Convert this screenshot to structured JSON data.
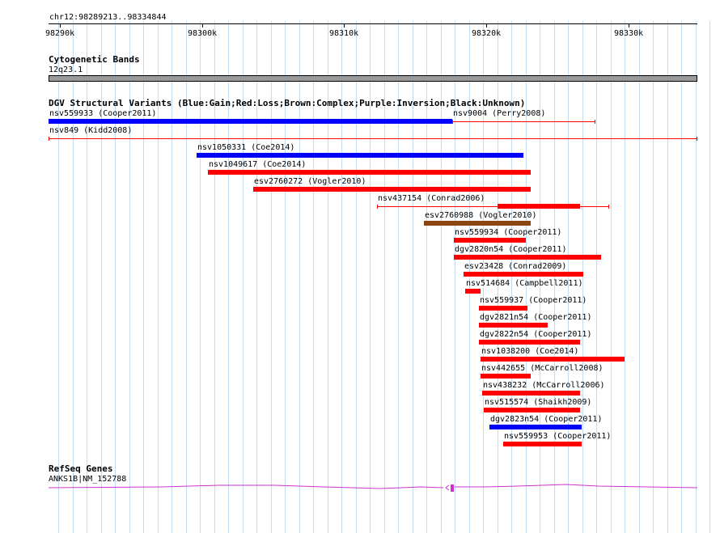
{
  "region": "chr12:98289213..98334844",
  "ruler": {
    "ticks": [
      "98290k",
      "98300k",
      "98310k",
      "98320k",
      "98330k"
    ]
  },
  "cytoband": {
    "title": "Cytogenetic Bands",
    "band": "12q23.1"
  },
  "dgv": {
    "title": "DGV Structural Variants (Blue:Gain;Red:Loss;Brown:Complex;Purple:Inversion;Black:Unknown)",
    "colors": {
      "gain": "#0000ff",
      "loss": "#ff0000",
      "complex": "#8b4513"
    },
    "variants": [
      {
        "label": "nsv559933 (Cooper2011)",
        "type": "gain",
        "style": "thick",
        "start": 98289213,
        "end": 98317600
      },
      {
        "label": "nsv9004 (Perry2008)",
        "type": "loss",
        "style": "thin",
        "start": 98317600,
        "end": 98327600
      },
      {
        "label": "nsv849 (Kidd2008)",
        "type": "loss",
        "style": "thin",
        "start": 98289213,
        "end": 98334800
      },
      {
        "label": "nsv1050331 (Coe2014)",
        "type": "gain",
        "style": "thick",
        "start": 98299600,
        "end": 98322600
      },
      {
        "label": "nsv1049617 (Coe2014)",
        "type": "loss",
        "style": "thick",
        "start": 98300400,
        "end": 98323100
      },
      {
        "label": "esv2760272 (Vogler2010)",
        "type": "loss",
        "style": "thick",
        "start": 98303600,
        "end": 98323100
      },
      {
        "label": "nsv437154 (Conrad2006)",
        "type": "loss",
        "style": "mixed",
        "start": 98312300,
        "end": 98328600,
        "thick_start": 98320800,
        "thick_end": 98326600
      },
      {
        "label": "esv2760988 (Vogler2010)",
        "type": "complex",
        "style": "thick",
        "start": 98315600,
        "end": 98323100
      },
      {
        "label": "nsv559934 (Cooper2011)",
        "type": "loss",
        "style": "thick",
        "start": 98317700,
        "end": 98322800
      },
      {
        "label": "dgv2820n54 (Cooper2011)",
        "type": "loss",
        "style": "thick",
        "start": 98317700,
        "end": 98328100
      },
      {
        "label": "esv23428 (Conrad2009)",
        "type": "loss",
        "style": "thick",
        "start": 98318400,
        "end": 98326800
      },
      {
        "label": "nsv514684 (Campbell2011)",
        "type": "loss",
        "style": "thick",
        "start": 98318500,
        "end": 98319600
      },
      {
        "label": "nsv559937 (Cooper2011)",
        "type": "loss",
        "style": "thick",
        "start": 98319500,
        "end": 98322900
      },
      {
        "label": "dgv2821n54 (Cooper2011)",
        "type": "loss",
        "style": "thick",
        "start": 98319500,
        "end": 98324300
      },
      {
        "label": "dgv2822n54 (Cooper2011)",
        "type": "loss",
        "style": "thick",
        "start": 98319500,
        "end": 98326600
      },
      {
        "label": "nsv1038200 (Coe2014)",
        "type": "loss",
        "style": "thick",
        "start": 98319600,
        "end": 98329700
      },
      {
        "label": "nsv442655 (McCarroll2008)",
        "type": "loss",
        "style": "thick",
        "start": 98319600,
        "end": 98323100
      },
      {
        "label": "nsv438232 (McCarroll2006)",
        "type": "loss",
        "style": "thick",
        "start": 98319700,
        "end": 98326600
      },
      {
        "label": "nsv515574 (Shaikh2009)",
        "type": "loss",
        "style": "thick",
        "start": 98319800,
        "end": 98326600
      },
      {
        "label": "dgv2823n54 (Cooper2011)",
        "type": "gain",
        "style": "thick",
        "start": 98320200,
        "end": 98326700
      },
      {
        "label": "nsv559953 (Cooper2011)",
        "type": "loss",
        "style": "thick",
        "start": 98321200,
        "end": 98326700
      }
    ]
  },
  "refseq": {
    "title": "RefSeq Genes",
    "gene": "ANKS1B|NM_152788",
    "color": "#cc33cc"
  }
}
